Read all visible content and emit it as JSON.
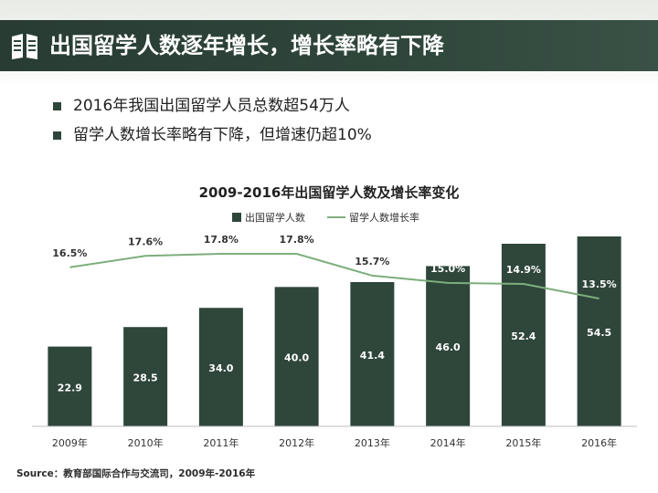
{
  "header": {
    "title": "出国留学人数逐年增长，增长率略有下降",
    "icon": "book-icon",
    "colors": {
      "bar": "#2f463b",
      "accent": "#ffffff"
    }
  },
  "bullets": [
    "2016年我国出国留学人员总数超54万人",
    "留学人数增长率略有下降，但增速仍超10%"
  ],
  "chart_data": {
    "type": "bar",
    "title": "2009-2016年出国留学人数及增长率变化",
    "categories": [
      "2009年",
      "2010年",
      "2011年",
      "2012年",
      "2013年",
      "2014年",
      "2015年",
      "2016年"
    ],
    "series": [
      {
        "name": "出国留学人数",
        "type": "bar",
        "color": "#2f463b",
        "values": [
          22.9,
          28.5,
          34.0,
          40.0,
          41.4,
          46.0,
          52.4,
          54.5
        ],
        "labels": [
          "22.9",
          "28.5",
          "34.0",
          "40.0",
          "41.4",
          "46.0",
          "52.4",
          "54.5"
        ]
      },
      {
        "name": "留学人数增长率",
        "type": "line",
        "color": "#7dae7c",
        "values": [
          16.5,
          17.6,
          17.8,
          17.8,
          15.7,
          15.0,
          14.9,
          13.5
        ],
        "labels": [
          "16.5%",
          "17.6%",
          "17.8%",
          "17.8%",
          "15.7%",
          "15.0%",
          "14.9%",
          "13.5%"
        ]
      }
    ],
    "bar_ylim": [
      0,
      60
    ],
    "line_ylim": [
      0,
      21
    ],
    "legend_position": "top",
    "grid": false
  },
  "source": "Source：教育部国际合作与交流司，2009年-2016年"
}
